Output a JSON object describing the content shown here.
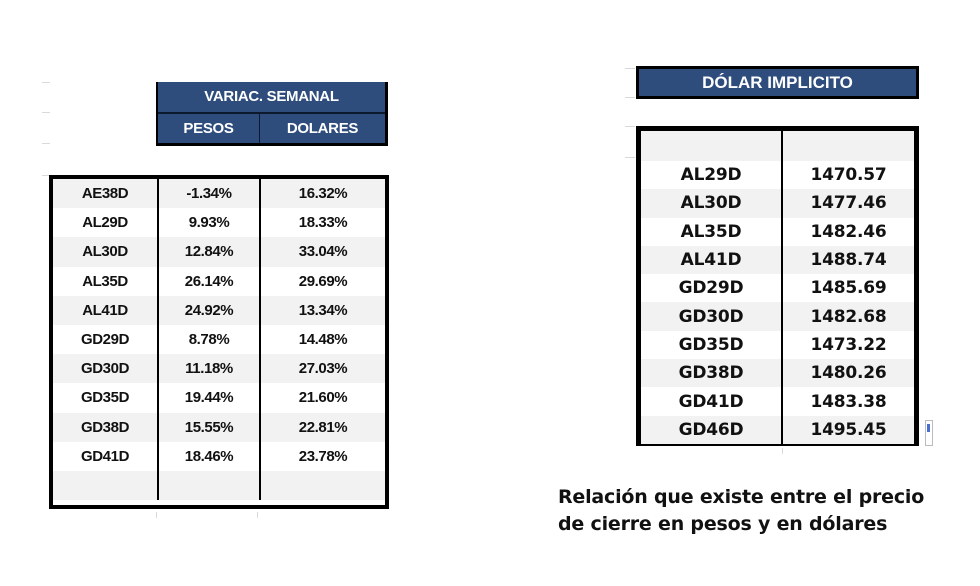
{
  "variacion_semanal": {
    "title": "VARIAC. SEMANAL",
    "columns": [
      "PESOS",
      "DOLARES"
    ],
    "rows": [
      {
        "ticker": "AE38D",
        "pesos": "-1.34%",
        "dolares": "16.32%"
      },
      {
        "ticker": "AL29D",
        "pesos": "9.93%",
        "dolares": "18.33%"
      },
      {
        "ticker": "AL30D",
        "pesos": "12.84%",
        "dolares": "33.04%"
      },
      {
        "ticker": "AL35D",
        "pesos": "26.14%",
        "dolares": "29.69%"
      },
      {
        "ticker": "AL41D",
        "pesos": "24.92%",
        "dolares": "13.34%"
      },
      {
        "ticker": "GD29D",
        "pesos": "8.78%",
        "dolares": "14.48%"
      },
      {
        "ticker": "GD30D",
        "pesos": "11.18%",
        "dolares": "27.03%"
      },
      {
        "ticker": "GD35D",
        "pesos": "19.44%",
        "dolares": "21.60%"
      },
      {
        "ticker": "GD38D",
        "pesos": "15.55%",
        "dolares": "22.81%"
      },
      {
        "ticker": "GD41D",
        "pesos": "18.46%",
        "dolares": "23.78%"
      },
      {
        "ticker": "",
        "pesos": "",
        "dolares": ""
      }
    ]
  },
  "dolar_implicito": {
    "title": "DÓLAR IMPLICITO",
    "rows": [
      {
        "ticker": "",
        "value": ""
      },
      {
        "ticker": "AL29D",
        "value": "1470.57"
      },
      {
        "ticker": "AL30D",
        "value": "1477.46"
      },
      {
        "ticker": "AL35D",
        "value": "1482.46"
      },
      {
        "ticker": "AL41D",
        "value": "1488.74"
      },
      {
        "ticker": "GD29D",
        "value": "1485.69"
      },
      {
        "ticker": "GD30D",
        "value": "1482.68"
      },
      {
        "ticker": "GD35D",
        "value": "1473.22"
      },
      {
        "ticker": "GD38D",
        "value": "1480.26"
      },
      {
        "ticker": "GD41D",
        "value": "1483.38"
      },
      {
        "ticker": "GD46D",
        "value": "1495.45"
      }
    ]
  },
  "caption": {
    "line1": "Relación que existe entre el precio",
    "line2": "de cierre en pesos y en dólares"
  },
  "colors": {
    "header_bg": "#2e4d7d",
    "header_text": "#ffffff",
    "row_shade": "#f2f2f2",
    "border": "#000000"
  }
}
